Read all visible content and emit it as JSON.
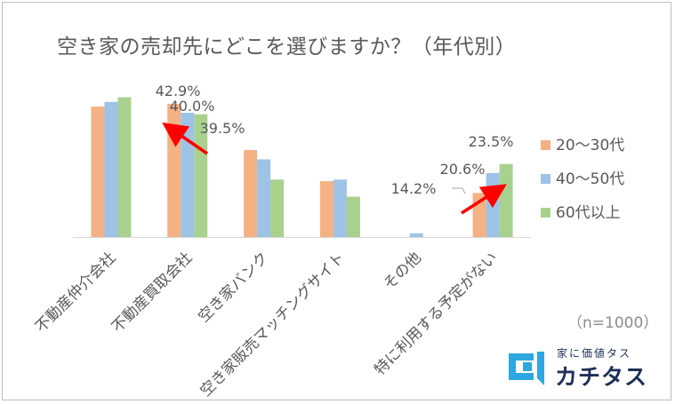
{
  "chart_data": {
    "type": "bar",
    "title": "空き家の売却先にどこを選びますか？（年代別）",
    "categories": [
      "不動産仲介会社",
      "不動産買取会社",
      "空き家バンク",
      "空き家販売マッチングサイト",
      "その他",
      "特に利用する予定がない"
    ],
    "series": [
      {
        "name": "20～30代",
        "color": "#f4b183",
        "values": [
          42.0,
          42.9,
          28.0,
          18.0,
          0.0,
          14.2
        ]
      },
      {
        "name": "40～50代",
        "color": "#9dc3e6",
        "values": [
          43.5,
          40.0,
          25.0,
          18.5,
          1.2,
          20.6
        ]
      },
      {
        "name": "60代以上",
        "color": "#a9d18e",
        "values": [
          45.0,
          39.5,
          18.5,
          13.0,
          0.0,
          23.5
        ]
      }
    ],
    "data_labels": [
      {
        "text": "42.9%",
        "category": 1,
        "series": 0
      },
      {
        "text": "40.0%",
        "category": 1,
        "series": 1
      },
      {
        "text": "39.5%",
        "category": 1,
        "series": 2
      },
      {
        "text": "14.2%",
        "category": 5,
        "series": 0
      },
      {
        "text": "20.6%",
        "category": 5,
        "series": 1
      },
      {
        "text": "23.5%",
        "category": 5,
        "series": 2
      }
    ],
    "ylim": [
      0,
      50
    ],
    "grid": false,
    "legend_position": "right",
    "annotation_arrow_color": "#ff0000"
  },
  "note": "（n=1000）",
  "logo": {
    "tagline": "家に価値タス",
    "name": "カチタス",
    "color": "#1f2f56",
    "mark_color": "#2ea7e0"
  }
}
